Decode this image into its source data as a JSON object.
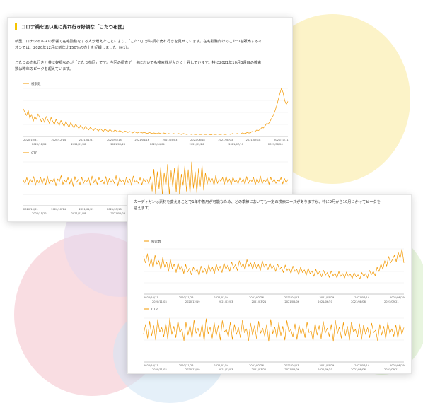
{
  "colors": {
    "line": "#f39800",
    "heading_accent": "#f5c400",
    "blob_yellow": "#fbeeb0",
    "blob_pink": "#f7cfd6",
    "blob_blue": "#d4e6f5",
    "blob_purple": "#e4d8ef",
    "blob_green": "#d8efc9"
  },
  "panel1": {
    "title": "コロナ禍を追い風に売れ行き好調な「こたつ布団」",
    "para1_line1": "新型コロナウイルスの影響で在宅勤務をする人が増えたことにより、「こたつ」が好調な売れ行きを見せています。在宅勤務向けのこたつを販売するイ",
    "para1_line2": "オンでは、2020年12月に前年比150%の売上を記録しました（※1）。",
    "para2_line1": "こたつの売れ行きと共に好調なのが「こたつ布団」です。今回の調査データにおいても検索数が大きく上昇しています。特に2021年10月3週目の検索",
    "para2_line2": "数は昨年のピークを超えています。"
  },
  "panel2": {
    "para_line1": "カーディガンは素材を変えることで1年中着用が可能なため、どの季節においても一定の検索ニーズがありますが、特に9月から10月にかけてピークを",
    "para_line2": "迎えます。"
  },
  "chart_data": [
    {
      "id": "kotatsu-search",
      "type": "line",
      "legend": "検索数",
      "ticks_top": [
        "2020/10/31",
        "2020/12/14",
        "2021/01/31",
        "2021/03/18",
        "2021/04/16",
        "2021/05/03",
        "2021/06/18",
        "2021/08/03",
        "2021/09/18",
        "2021/10/11"
      ],
      "ticks_bottom": [
        "2020/11/22",
        "2021/01/08",
        "2021/02/23",
        "2021/04/04",
        "2021/05/26",
        "2021/07/11",
        "2021/08/26"
      ],
      "values": [
        55,
        48,
        42,
        52,
        36,
        44,
        30,
        40,
        34,
        45,
        38,
        30,
        36,
        28,
        40,
        33,
        26,
        38,
        30,
        24,
        34,
        28,
        22,
        32,
        26,
        20,
        30,
        24,
        18,
        28,
        22,
        17,
        25,
        20,
        16,
        22,
        18,
        14,
        20,
        16,
        13,
        18,
        15,
        12,
        17,
        14,
        11,
        16,
        13,
        10,
        15,
        12,
        10,
        14,
        11,
        9,
        13,
        11,
        9,
        12,
        10,
        8,
        11,
        10,
        8,
        10,
        9,
        7,
        10,
        8,
        7,
        9,
        8,
        7,
        8,
        7,
        6,
        8,
        7,
        6,
        7,
        6,
        6,
        7,
        6,
        5,
        7,
        6,
        5,
        6,
        5,
        5,
        6,
        5,
        5,
        6,
        5,
        4,
        6,
        5,
        4,
        5,
        5,
        4,
        5,
        4,
        4,
        5,
        4,
        4,
        5,
        4,
        4,
        5,
        4,
        3,
        5,
        4,
        4,
        5,
        4,
        4,
        5,
        4,
        4,
        5,
        5,
        4,
        6,
        5,
        5,
        6,
        5,
        5,
        7,
        6,
        6,
        8,
        7,
        7,
        10,
        9,
        10,
        13,
        12,
        14,
        18,
        17,
        21,
        26,
        25,
        30,
        36,
        42,
        50,
        60,
        72,
        85,
        96,
        88,
        72,
        64,
        70
      ]
    },
    {
      "id": "kotatsu-ctr",
      "type": "line",
      "legend": "CTR",
      "ticks_top": [
        "2020/10/31",
        "2020/12/14",
        "2021/01/31",
        "2021/03/18",
        "2021/04/16",
        "2021/05/03",
        "2021/06/18",
        "2021/08/03",
        "2021/09/18",
        "2021/10/11"
      ],
      "ticks_bottom": [
        "2020/11/22",
        "2021/01/08",
        "2021/02/23",
        "2021/04/04",
        "2021/05/26",
        "2021/07/11",
        "2021/08/26"
      ],
      "values": [
        52,
        46,
        58,
        44,
        55,
        48,
        60,
        42,
        54,
        47,
        59,
        45,
        56,
        43,
        61,
        46,
        53,
        49,
        57,
        41,
        55,
        50,
        62,
        44,
        52,
        47,
        58,
        45,
        56,
        40,
        60,
        48,
        54,
        43,
        59,
        46,
        53,
        50,
        57,
        42,
        61,
        47,
        55,
        44,
        58,
        49,
        52,
        45,
        60,
        43,
        56,
        48,
        54,
        46,
        62,
        41,
        57,
        49,
        53,
        44,
        59,
        47,
        55,
        42,
        61,
        48,
        52,
        46,
        58,
        43,
        56,
        50,
        54,
        45,
        60,
        30,
        75,
        25,
        70,
        35,
        80,
        20,
        68,
        40,
        85,
        22,
        72,
        38,
        78,
        28,
        88,
        18,
        65,
        42,
        82,
        30,
        74,
        24,
        90,
        36,
        70,
        26,
        76,
        40,
        84,
        32,
        68,
        44,
        60,
        48,
        56,
        42,
        62,
        46,
        54,
        50,
        58,
        44,
        61,
        47,
        55,
        43,
        59,
        49,
        53,
        45,
        57,
        48,
        55,
        44,
        60,
        46,
        54,
        50,
        58,
        43,
        56,
        47,
        61,
        45,
        53,
        49,
        57,
        44,
        59,
        48,
        55,
        46,
        52,
        50,
        58,
        45,
        56,
        47,
        54
      ]
    },
    {
      "id": "cardigan-search",
      "type": "line",
      "legend": "検索数",
      "ticks_top": [
        "2020/10/11",
        "2020/11/26",
        "2021/01/24",
        "2021/02/26",
        "2021/04/13",
        "2021/05/29",
        "2021/07/14",
        "2021/08/29"
      ],
      "ticks_bottom": [
        "2020/11/03",
        "2020/12/19",
        "2021/02/03",
        "2021/03/21",
        "2021/05/06",
        "2021/06/21",
        "2021/08/06",
        "2021/09/21"
      ],
      "values": [
        70,
        58,
        75,
        52,
        66,
        48,
        72,
        55,
        62,
        45,
        68,
        50,
        60,
        42,
        64,
        47,
        56,
        40,
        58,
        44,
        52,
        38,
        55,
        41,
        48,
        36,
        50,
        42,
        46,
        34,
        52,
        40,
        48,
        36,
        54,
        42,
        50,
        38,
        56,
        44,
        52,
        40,
        58,
        46,
        54,
        42,
        60,
        48,
        55,
        44,
        62,
        50,
        57,
        45,
        64,
        52,
        58,
        46,
        60,
        48,
        55,
        44,
        62,
        50,
        56,
        45,
        58,
        47,
        53,
        42,
        56,
        46,
        50,
        40,
        54,
        44,
        48,
        38,
        52,
        42,
        46,
        36,
        50,
        40,
        45,
        35,
        48,
        38,
        43,
        33,
        46,
        36,
        42,
        32,
        44,
        35,
        40,
        31,
        43,
        34,
        39,
        30,
        42,
        33,
        38,
        30,
        41,
        33,
        37,
        29,
        40,
        32,
        36,
        28,
        40,
        33,
        38,
        30,
        44,
        36,
        42,
        34,
        50,
        42,
        56,
        46,
        62,
        52,
        70,
        58,
        64,
        72,
        60,
        78,
        66,
        84,
        58
      ]
    },
    {
      "id": "cardigan-ctr",
      "type": "line",
      "legend": "CTR",
      "ticks_top": [
        "2020/10/11",
        "2020/11/26",
        "2021/01/24",
        "2021/02/26",
        "2021/04/13",
        "2021/05/29",
        "2021/07/14",
        "2021/08/29"
      ],
      "ticks_bottom": [
        "2020/11/03",
        "2020/12/19",
        "2021/02/03",
        "2021/03/21",
        "2021/05/06",
        "2021/06/21",
        "2021/08/06",
        "2021/09/21"
      ],
      "values": [
        45,
        60,
        38,
        65,
        42,
        58,
        35,
        68,
        48,
        55,
        40,
        62,
        36,
        70,
        44,
        57,
        39,
        66,
        47,
        53,
        34,
        64,
        43,
        59,
        37,
        67,
        46,
        54,
        41,
        61,
        33,
        69,
        45,
        56,
        38,
        63,
        42,
        58,
        35,
        66,
        48,
        52,
        40,
        64,
        36,
        60,
        44,
        55,
        39,
        67,
        47,
        53,
        34,
        62,
        43,
        58,
        37,
        65,
        46,
        54,
        41,
        60,
        33,
        68,
        45,
        56,
        38,
        63,
        42,
        57,
        35,
        66,
        48,
        52,
        40,
        61,
        36,
        59,
        44,
        55,
        39,
        64,
        47,
        50,
        34,
        62,
        43,
        58,
        37,
        65,
        46,
        54,
        41,
        60,
        33,
        67,
        45,
        56,
        38,
        63,
        42,
        57,
        35,
        64,
        48,
        52,
        40,
        61,
        36,
        59,
        44,
        55,
        39,
        62,
        47,
        51,
        34,
        60,
        43,
        57,
        37,
        63,
        46,
        53,
        41,
        59,
        38,
        61,
        44,
        55
      ]
    }
  ]
}
